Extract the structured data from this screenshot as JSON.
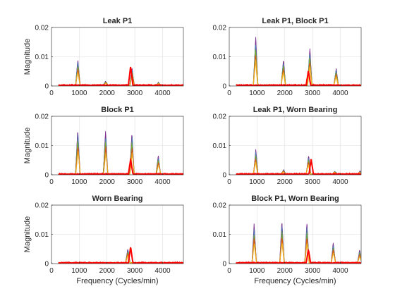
{
  "chart_data": [
    {
      "type": "line",
      "title": "Leak P1",
      "xlabel": "",
      "ylabel": "Magnitude",
      "xlim": [
        0,
        4750
      ],
      "ylim": [
        0,
        0.02
      ],
      "xticks": [
        0,
        1000,
        2000,
        3000,
        4000
      ],
      "yticks": [
        0,
        0.01,
        0.02
      ],
      "ytick_labels": [
        "0",
        "0.01",
        "0.02"
      ],
      "grid": true,
      "background_series": {
        "colors": [
          "#7e2f8e",
          "#4b7fb5",
          "#77ac30",
          "#d95319",
          "#edb120"
        ],
        "peaks": [
          [
            950,
            0.009
          ],
          [
            1950,
            0.0015
          ],
          [
            2900,
            0.006
          ],
          [
            3850,
            0.001
          ]
        ]
      },
      "highlight_series": {
        "color": "#ff0000",
        "peaks": [
          [
            2850,
            0.0065
          ]
        ]
      }
    },
    {
      "type": "line",
      "title": "Leak P1, Block P1",
      "xlabel": "",
      "ylabel": "",
      "xlim": [
        0,
        4750
      ],
      "ylim": [
        0,
        0.02
      ],
      "xticks": [
        0,
        1000,
        2000,
        3000,
        4000
      ],
      "yticks": [
        0,
        0.01,
        0.02
      ],
      "ytick_labels": [
        "0",
        "0.01",
        "0.02"
      ],
      "grid": true,
      "background_series": {
        "colors": [
          "#7e2f8e",
          "#4b7fb5",
          "#77ac30",
          "#d95319",
          "#edb120"
        ],
        "peaks": [
          [
            950,
            0.017
          ],
          [
            1950,
            0.009
          ],
          [
            2900,
            0.013
          ],
          [
            3850,
            0.006
          ]
        ]
      },
      "highlight_series": {
        "color": "#ff0000",
        "peaks": [
          [
            2850,
            0.005
          ]
        ]
      }
    },
    {
      "type": "line",
      "title": "Block P1",
      "xlabel": "",
      "ylabel": "Magnitude",
      "xlim": [
        0,
        4750
      ],
      "ylim": [
        0,
        0.02
      ],
      "xticks": [
        0,
        1000,
        2000,
        3000,
        4000
      ],
      "yticks": [
        0,
        0.01,
        0.02
      ],
      "ytick_labels": [
        "0",
        "0.01",
        "0.02"
      ],
      "grid": true,
      "background_series": {
        "colors": [
          "#7e2f8e",
          "#4b7fb5",
          "#77ac30",
          "#d95319",
          "#edb120"
        ],
        "peaks": [
          [
            950,
            0.0155
          ],
          [
            1950,
            0.015
          ],
          [
            2900,
            0.0145
          ],
          [
            3850,
            0.0065
          ]
        ]
      },
      "highlight_series": {
        "color": "#ff0000",
        "peaks": [
          [
            2850,
            0.005
          ]
        ]
      }
    },
    {
      "type": "line",
      "title": "Leak P1, Worn Bearing",
      "xlabel": "",
      "ylabel": "",
      "xlim": [
        0,
        4750
      ],
      "ylim": [
        0,
        0.02
      ],
      "xticks": [
        0,
        1000,
        2000,
        3000,
        4000
      ],
      "yticks": [
        0,
        0.01,
        0.02
      ],
      "ytick_labels": [
        "0",
        "0.01",
        "0.02"
      ],
      "grid": true,
      "background_series": {
        "colors": [
          "#7e2f8e",
          "#4b7fb5",
          "#77ac30",
          "#d95319",
          "#edb120"
        ],
        "peaks": [
          [
            950,
            0.0085
          ],
          [
            1950,
            0.0015
          ],
          [
            2850,
            0.0065
          ],
          [
            3800,
            0.001
          ],
          [
            4700,
            0.001
          ]
        ]
      },
      "highlight_series": {
        "color": "#ff0000",
        "peaks": [
          [
            2950,
            0.005
          ]
        ]
      }
    },
    {
      "type": "line",
      "title": "Worn Bearing",
      "xlabel": "Frequency (Cycles/min)",
      "ylabel": "Magnitude",
      "xlim": [
        0,
        4750
      ],
      "ylim": [
        0,
        0.02
      ],
      "xticks": [
        0,
        1000,
        2000,
        3000,
        4000
      ],
      "yticks": [
        0,
        0.01,
        0.02
      ],
      "ytick_labels": [
        "0",
        "0.01",
        "0.02"
      ],
      "grid": true,
      "background_series": {
        "colors": [
          "#7e2f8e",
          "#4b7fb5",
          "#77ac30",
          "#d95319",
          "#edb120"
        ],
        "peaks": [
          [
            2750,
            0.005
          ]
        ]
      },
      "highlight_series": {
        "color": "#ff0000",
        "peaks": [
          [
            2850,
            0.0055
          ]
        ]
      }
    },
    {
      "type": "line",
      "title": "Block P1, Worn Bearing",
      "xlabel": "Frequency (Cycles/min)",
      "ylabel": "",
      "xlim": [
        0,
        4750
      ],
      "ylim": [
        0,
        0.02
      ],
      "xticks": [
        0,
        1000,
        2000,
        3000,
        4000
      ],
      "yticks": [
        0,
        0.01,
        0.02
      ],
      "ytick_labels": [
        "0",
        "0.01",
        "0.02"
      ],
      "grid": true,
      "background_series": {
        "colors": [
          "#7e2f8e",
          "#4b7fb5",
          "#77ac30",
          "#d95319",
          "#edb120"
        ],
        "peaks": [
          [
            900,
            0.0135
          ],
          [
            1900,
            0.0145
          ],
          [
            2800,
            0.014
          ],
          [
            3750,
            0.007
          ],
          [
            4700,
            0.0045
          ]
        ]
      },
      "highlight_series": {
        "color": "#ff0000",
        "peaks": [
          [
            2850,
            0.0045
          ]
        ]
      }
    }
  ]
}
